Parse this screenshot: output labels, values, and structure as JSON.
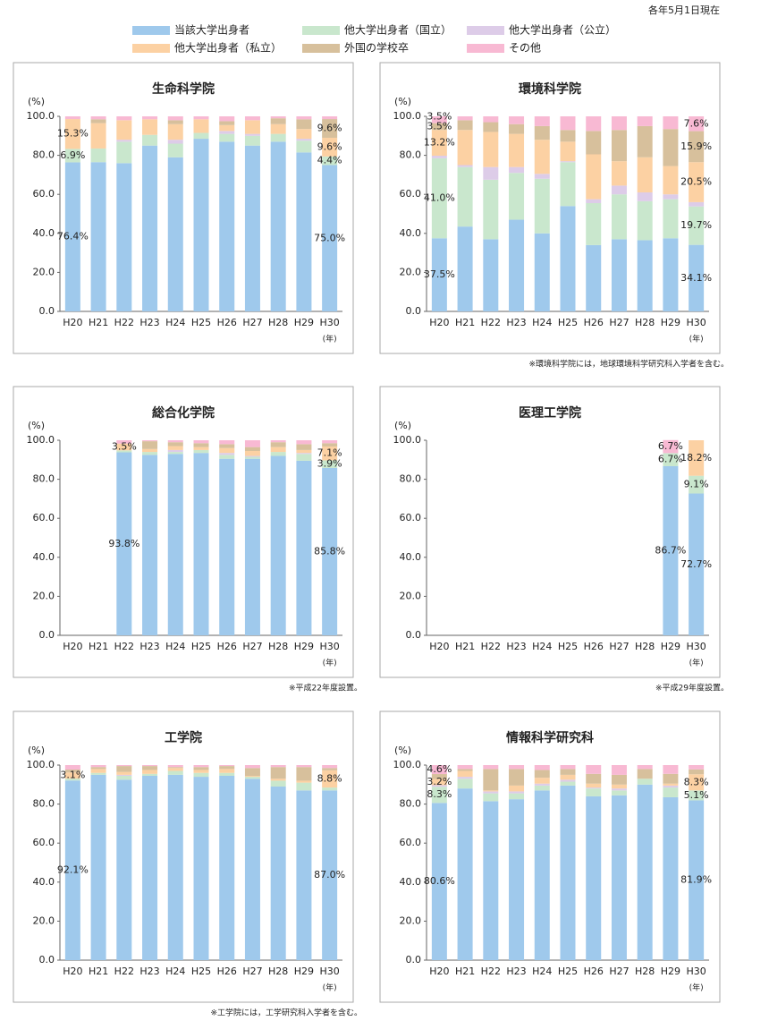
{
  "note": "各年5月1日現在",
  "legend": [
    {
      "name": "当該大学出身者",
      "color": "#9fc9ec"
    },
    {
      "name": "他大学出身者（国立）",
      "color": "#c9e7cd"
    },
    {
      "name": "他大学出身者（公立）",
      "color": "#ddcce8"
    },
    {
      "name": "他大学出身者（私立）",
      "color": "#fcd1a3"
    },
    {
      "name": "外国の学校卒",
      "color": "#d7c09c"
    },
    {
      "name": "その他",
      "color": "#f8b9d3"
    }
  ],
  "chart_data": [
    {
      "type": "stacked-bar",
      "title": "生命科学院",
      "ylabel": "(%)",
      "xunit": "(年)",
      "categories": [
        "H20",
        "H21",
        "H22",
        "H23",
        "H24",
        "H25",
        "H26",
        "H27",
        "H28",
        "H29",
        "H30"
      ],
      "ylim": [
        0,
        100
      ],
      "yticks": [
        {
          "value": 0,
          "label": "0.0"
        },
        {
          "value": 20,
          "label": "20.0"
        },
        {
          "value": 40,
          "label": "40.0"
        },
        {
          "value": 60,
          "label": "60.0"
        },
        {
          "value": 80,
          "label": "80.0"
        },
        {
          "value": 100,
          "label": "100.0"
        }
      ],
      "series": [
        {
          "values": [
            76.4,
            76.5,
            76,
            85,
            79,
            88.5,
            87,
            85,
            87,
            81.5,
            75.0
          ],
          "value_labels": [
            "76.4%",
            null,
            null,
            null,
            null,
            null,
            null,
            null,
            null,
            null,
            "75.0%"
          ]
        },
        {
          "values": [
            6.9,
            7,
            11,
            5.5,
            7,
            3,
            4,
            5,
            4,
            6,
            4.4
          ],
          "value_labels": [
            "6.9%",
            null,
            null,
            null,
            null,
            null,
            null,
            null,
            null,
            null,
            "4.4%"
          ]
        },
        {
          "values": [
            0,
            0,
            1,
            0,
            2,
            0,
            1.5,
            1,
            0,
            1,
            0
          ]
        },
        {
          "values": [
            15.3,
            13,
            10,
            8,
            8,
            7,
            3,
            7,
            5,
            5,
            9.6
          ],
          "value_labels": [
            "15.3%",
            null,
            null,
            null,
            null,
            null,
            null,
            null,
            null,
            null,
            "9.6%"
          ]
        },
        {
          "values": [
            0,
            2,
            0,
            0,
            2,
            0,
            2,
            0,
            3,
            5,
            9.6
          ],
          "value_labels": [
            null,
            null,
            null,
            null,
            null,
            null,
            null,
            null,
            null,
            null,
            "9.6%"
          ]
        },
        {
          "values": [
            1.4,
            1.5,
            2,
            1.5,
            2,
            1.5,
            2.5,
            2,
            1,
            1.5,
            1.4
          ]
        }
      ]
    },
    {
      "type": "stacked-bar",
      "title": "環境科学院",
      "ylabel": "(%)",
      "xunit": "(年)",
      "note": "※環境科学院には，地球環境科学研究科入学者を含む。",
      "categories": [
        "H20",
        "H21",
        "H22",
        "H23",
        "H24",
        "H25",
        "H26",
        "H27",
        "H28",
        "H29",
        "H30"
      ],
      "ylim": [
        0,
        100
      ],
      "yticks": [
        {
          "value": 0,
          "label": "0.0"
        },
        {
          "value": 20,
          "label": "20.0"
        },
        {
          "value": 40,
          "label": "40.0"
        },
        {
          "value": 60,
          "label": "60.0"
        },
        {
          "value": 80,
          "label": "80.0"
        },
        {
          "value": 100,
          "label": "100.0"
        }
      ],
      "series": [
        {
          "values": [
            37.5,
            43.5,
            37,
            47,
            40,
            54,
            34,
            37,
            36.5,
            37.5,
            34.1
          ],
          "value_labels": [
            "37.5%",
            null,
            null,
            null,
            null,
            null,
            null,
            null,
            null,
            null,
            "34.1%"
          ]
        },
        {
          "values": [
            41.0,
            30.5,
            30.5,
            24,
            28,
            22.5,
            21.5,
            23,
            20,
            20,
            19.7
          ],
          "value_labels": [
            "41.0%",
            null,
            null,
            null,
            null,
            null,
            null,
            null,
            null,
            null,
            "19.7%"
          ]
        },
        {
          "values": [
            1.3,
            1,
            6.5,
            3,
            2.5,
            0.5,
            2,
            4.5,
            4.5,
            2.5,
            2.2
          ]
        },
        {
          "values": [
            13.2,
            18,
            18,
            17,
            17.5,
            10,
            23,
            12.5,
            18,
            14.5,
            20.5
          ],
          "value_labels": [
            "13.2%",
            null,
            null,
            null,
            null,
            null,
            null,
            null,
            null,
            null,
            "20.5%"
          ]
        },
        {
          "values": [
            3.5,
            5,
            5,
            5,
            7,
            6,
            12,
            16,
            16,
            19,
            15.9
          ],
          "value_labels": [
            "3.5%",
            null,
            null,
            null,
            null,
            null,
            null,
            null,
            null,
            null,
            "15.9%"
          ]
        },
        {
          "values": [
            3.5,
            2,
            3,
            4,
            5,
            7,
            7.5,
            7,
            5,
            6.5,
            7.6
          ],
          "value_labels": [
            "3.5%",
            null,
            null,
            null,
            null,
            null,
            null,
            null,
            null,
            null,
            "7.6%"
          ]
        }
      ]
    },
    {
      "type": "stacked-bar",
      "title": "総合化学院",
      "ylabel": "(%)",
      "xunit": "(年)",
      "note": "※平成22年度設置。",
      "categories": [
        "H20",
        "H21",
        "H22",
        "H23",
        "H24",
        "H25",
        "H26",
        "H27",
        "H28",
        "H29",
        "H30"
      ],
      "ylim": [
        0,
        100
      ],
      "yticks": [
        {
          "value": 0,
          "label": "0.0"
        },
        {
          "value": 20,
          "label": "20.0"
        },
        {
          "value": 40,
          "label": "40.0"
        },
        {
          "value": 60,
          "label": "60.0"
        },
        {
          "value": 80,
          "label": "80.0"
        },
        {
          "value": 100,
          "label": "100.0"
        }
      ],
      "series": [
        {
          "values": [
            null,
            null,
            93.8,
            92.5,
            93,
            93.5,
            90.5,
            90.5,
            92,
            89.5,
            85.8
          ],
          "value_labels": [
            null,
            null,
            "93.8%",
            null,
            null,
            null,
            null,
            null,
            null,
            null,
            "85.8%"
          ]
        },
        {
          "values": [
            null,
            null,
            1,
            1.5,
            1,
            1.5,
            2,
            1,
            2,
            3.5,
            3.9
          ],
          "value_labels": [
            null,
            null,
            null,
            null,
            null,
            null,
            null,
            null,
            null,
            null,
            "3.9%"
          ]
        },
        {
          "values": [
            null,
            null,
            0,
            0,
            1,
            0,
            1,
            0.5,
            0,
            0.5,
            0
          ]
        },
        {
          "values": [
            null,
            null,
            3.5,
            1.5,
            2,
            1.5,
            2.5,
            2.5,
            2.5,
            1.5,
            7.1
          ],
          "value_labels": [
            null,
            null,
            "3.5%",
            null,
            null,
            null,
            null,
            null,
            null,
            null,
            "7.1%"
          ]
        },
        {
          "values": [
            null,
            null,
            0,
            4,
            2,
            2,
            2,
            2,
            2.5,
            3,
            1.7
          ]
        },
        {
          "values": [
            null,
            null,
            1.7,
            0.5,
            1,
            1.5,
            2,
            3.5,
            1,
            2,
            1.5
          ]
        }
      ]
    },
    {
      "type": "stacked-bar",
      "title": "医理工学院",
      "ylabel": "(%)",
      "xunit": "(年)",
      "note": "※平成29年度設置。",
      "categories": [
        "H20",
        "H21",
        "H22",
        "H23",
        "H24",
        "H25",
        "H26",
        "H27",
        "H28",
        "H29",
        "H30"
      ],
      "ylim": [
        0,
        100
      ],
      "yticks": [
        {
          "value": 0,
          "label": "0.0"
        },
        {
          "value": 20,
          "label": "20.0"
        },
        {
          "value": 40,
          "label": "40.0"
        },
        {
          "value": 60,
          "label": "60.0"
        },
        {
          "value": 80,
          "label": "80.0"
        },
        {
          "value": 100,
          "label": "100.0"
        }
      ],
      "series": [
        {
          "values": [
            null,
            null,
            null,
            null,
            null,
            null,
            null,
            null,
            null,
            86.7,
            72.7
          ],
          "value_labels": [
            null,
            null,
            null,
            null,
            null,
            null,
            null,
            null,
            null,
            "86.7%",
            "72.7%"
          ]
        },
        {
          "values": [
            null,
            null,
            null,
            null,
            null,
            null,
            null,
            null,
            null,
            6.7,
            9.1
          ],
          "value_labels": [
            null,
            null,
            null,
            null,
            null,
            null,
            null,
            null,
            null,
            "6.7%",
            "9.1%"
          ]
        },
        {
          "values": [
            null,
            null,
            null,
            null,
            null,
            null,
            null,
            null,
            null,
            0,
            0
          ]
        },
        {
          "values": [
            null,
            null,
            null,
            null,
            null,
            null,
            null,
            null,
            null,
            0,
            18.2
          ],
          "value_labels": [
            null,
            null,
            null,
            null,
            null,
            null,
            null,
            null,
            null,
            null,
            "18.2%"
          ]
        },
        {
          "values": [
            null,
            null,
            null,
            null,
            null,
            null,
            null,
            null,
            null,
            0,
            0
          ]
        },
        {
          "values": [
            null,
            null,
            null,
            null,
            null,
            null,
            null,
            null,
            null,
            6.7,
            0
          ],
          "value_labels": [
            null,
            null,
            null,
            null,
            null,
            null,
            null,
            null,
            null,
            "6.7%",
            null
          ]
        }
      ]
    },
    {
      "type": "stacked-bar",
      "title": "工学院",
      "ylabel": "(%)",
      "xunit": "(年)",
      "note": "※工学院には，工学研究科入学者を含む。",
      "categories": [
        "H20",
        "H21",
        "H22",
        "H23",
        "H24",
        "H25",
        "H26",
        "H27",
        "H28",
        "H29",
        "H30"
      ],
      "ylim": [
        0,
        100
      ],
      "yticks": [
        {
          "value": 0,
          "label": "0.0"
        },
        {
          "value": 20,
          "label": "20.0"
        },
        {
          "value": 40,
          "label": "40.0"
        },
        {
          "value": 60,
          "label": "60.0"
        },
        {
          "value": 80,
          "label": "80.0"
        },
        {
          "value": 100,
          "label": "100.0"
        }
      ],
      "series": [
        {
          "values": [
            92.1,
            95,
            92.5,
            94.5,
            95,
            94,
            94.5,
            93,
            89,
            87,
            87.0
          ],
          "value_labels": [
            "92.1%",
            null,
            null,
            null,
            null,
            null,
            null,
            null,
            null,
            null,
            "87.0%"
          ]
        },
        {
          "values": [
            1,
            1,
            2,
            1,
            2,
            2,
            1.5,
            1,
            3,
            4,
            1.5
          ]
        },
        {
          "values": [
            0,
            0,
            0.5,
            0,
            0,
            0,
            0,
            0,
            0,
            0,
            0
          ]
        },
        {
          "values": [
            3.1,
            2,
            1.5,
            2,
            1.5,
            1.5,
            2,
            0.5,
            1,
            1,
            8.8
          ],
          "value_labels": [
            "3.1%",
            null,
            null,
            null,
            null,
            null,
            null,
            null,
            null,
            null,
            "8.8%"
          ]
        },
        {
          "values": [
            1.5,
            1,
            3,
            2,
            0.5,
            1.5,
            1.5,
            4,
            6,
            7,
            1.2
          ]
        },
        {
          "values": [
            2.3,
            1,
            0.5,
            0.5,
            1,
            1,
            0.5,
            1.5,
            1,
            1,
            1.5
          ]
        }
      ]
    },
    {
      "type": "stacked-bar",
      "title": "情報科学研究科",
      "ylabel": "(%)",
      "xunit": "(年)",
      "categories": [
        "H20",
        "H21",
        "H22",
        "H23",
        "H24",
        "H25",
        "H26",
        "H27",
        "H28",
        "H29",
        "H30"
      ],
      "ylim": [
        0,
        100
      ],
      "yticks": [
        {
          "value": 0,
          "label": "0.0"
        },
        {
          "value": 20,
          "label": "20.0"
        },
        {
          "value": 40,
          "label": "40.0"
        },
        {
          "value": 60,
          "label": "60.0"
        },
        {
          "value": 80,
          "label": "80.0"
        },
        {
          "value": 100,
          "label": "100.0"
        }
      ],
      "series": [
        {
          "values": [
            80.6,
            88,
            81.5,
            82.5,
            87,
            89.5,
            84,
            84.5,
            90,
            83.5,
            81.9
          ],
          "value_labels": [
            "80.6%",
            null,
            null,
            null,
            null,
            null,
            null,
            null,
            null,
            null,
            "81.9%"
          ]
        },
        {
          "values": [
            8.3,
            5,
            4,
            3,
            2.5,
            2,
            4,
            2.5,
            3,
            5,
            5.1
          ],
          "value_labels": [
            "8.3%",
            null,
            null,
            null,
            null,
            null,
            null,
            null,
            null,
            null,
            "5.1%"
          ]
        },
        {
          "values": [
            0.8,
            1,
            1,
            1,
            1,
            1,
            0.5,
            1,
            0,
            1,
            0
          ]
        },
        {
          "values": [
            3.2,
            3,
            0.5,
            3,
            3,
            2.5,
            2,
            2,
            0,
            1,
            8.3
          ],
          "value_labels": [
            "3.2%",
            null,
            null,
            null,
            null,
            null,
            null,
            null,
            null,
            null,
            "8.3%"
          ]
        },
        {
          "values": [
            2.5,
            1,
            11,
            8.5,
            4,
            3,
            5,
            5,
            5,
            5,
            2.5
          ]
        },
        {
          "values": [
            4.6,
            2,
            2,
            2,
            2.5,
            2,
            4.5,
            5,
            2,
            4.5,
            2.2
          ],
          "value_labels": [
            "4.6%",
            null,
            null,
            null,
            null,
            null,
            null,
            null,
            null,
            null,
            null
          ]
        }
      ]
    }
  ]
}
